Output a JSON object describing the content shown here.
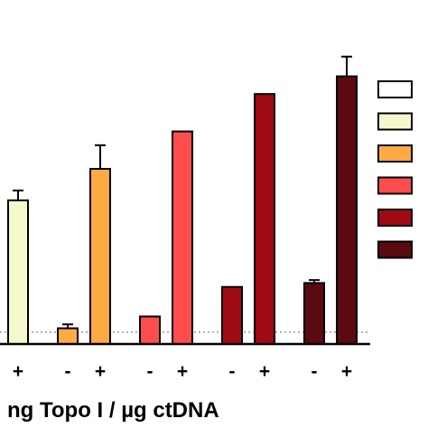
{
  "chart_data": {
    "type": "bar",
    "title": "",
    "xlabel": "ng Topo I / µg ctDNA",
    "ylabel": "",
    "baseline": 0,
    "reference_line": 6,
    "ylim": [
      0,
      150
    ],
    "grid": false,
    "legend_position": "right",
    "groups": [
      {
        "bars": [
          {
            "sign": "+",
            "value": 73,
            "error": 5,
            "color": "#f4f8cc"
          }
        ]
      },
      {
        "bars": [
          {
            "sign": "-",
            "value": 8,
            "error": 2,
            "color": "#ffaa44"
          },
          {
            "sign": "+",
            "value": 89,
            "error": 12,
            "color": "#ffaa44"
          }
        ]
      },
      {
        "bars": [
          {
            "sign": "-",
            "value": 14,
            "error": 0,
            "color": "#ff4d4d"
          },
          {
            "sign": "+",
            "value": 108,
            "error": 0,
            "color": "#ff4d4d"
          }
        ]
      },
      {
        "bars": [
          {
            "sign": "-",
            "value": 29,
            "error": 0,
            "color": "#a00a14"
          },
          {
            "sign": "+",
            "value": 127,
            "error": 0,
            "color": "#a00a14"
          }
        ]
      },
      {
        "bars": [
          {
            "sign": "-",
            "value": 31,
            "error": 1.5,
            "color": "#5a0a10"
          },
          {
            "sign": "+",
            "value": 136,
            "error": 10,
            "color": "#5a0a10"
          }
        ]
      }
    ],
    "legend_colors": [
      "#ffffff",
      "#f4f8cc",
      "#ffaa44",
      "#ff4d4d",
      "#a00a14",
      "#5a0a10"
    ]
  }
}
